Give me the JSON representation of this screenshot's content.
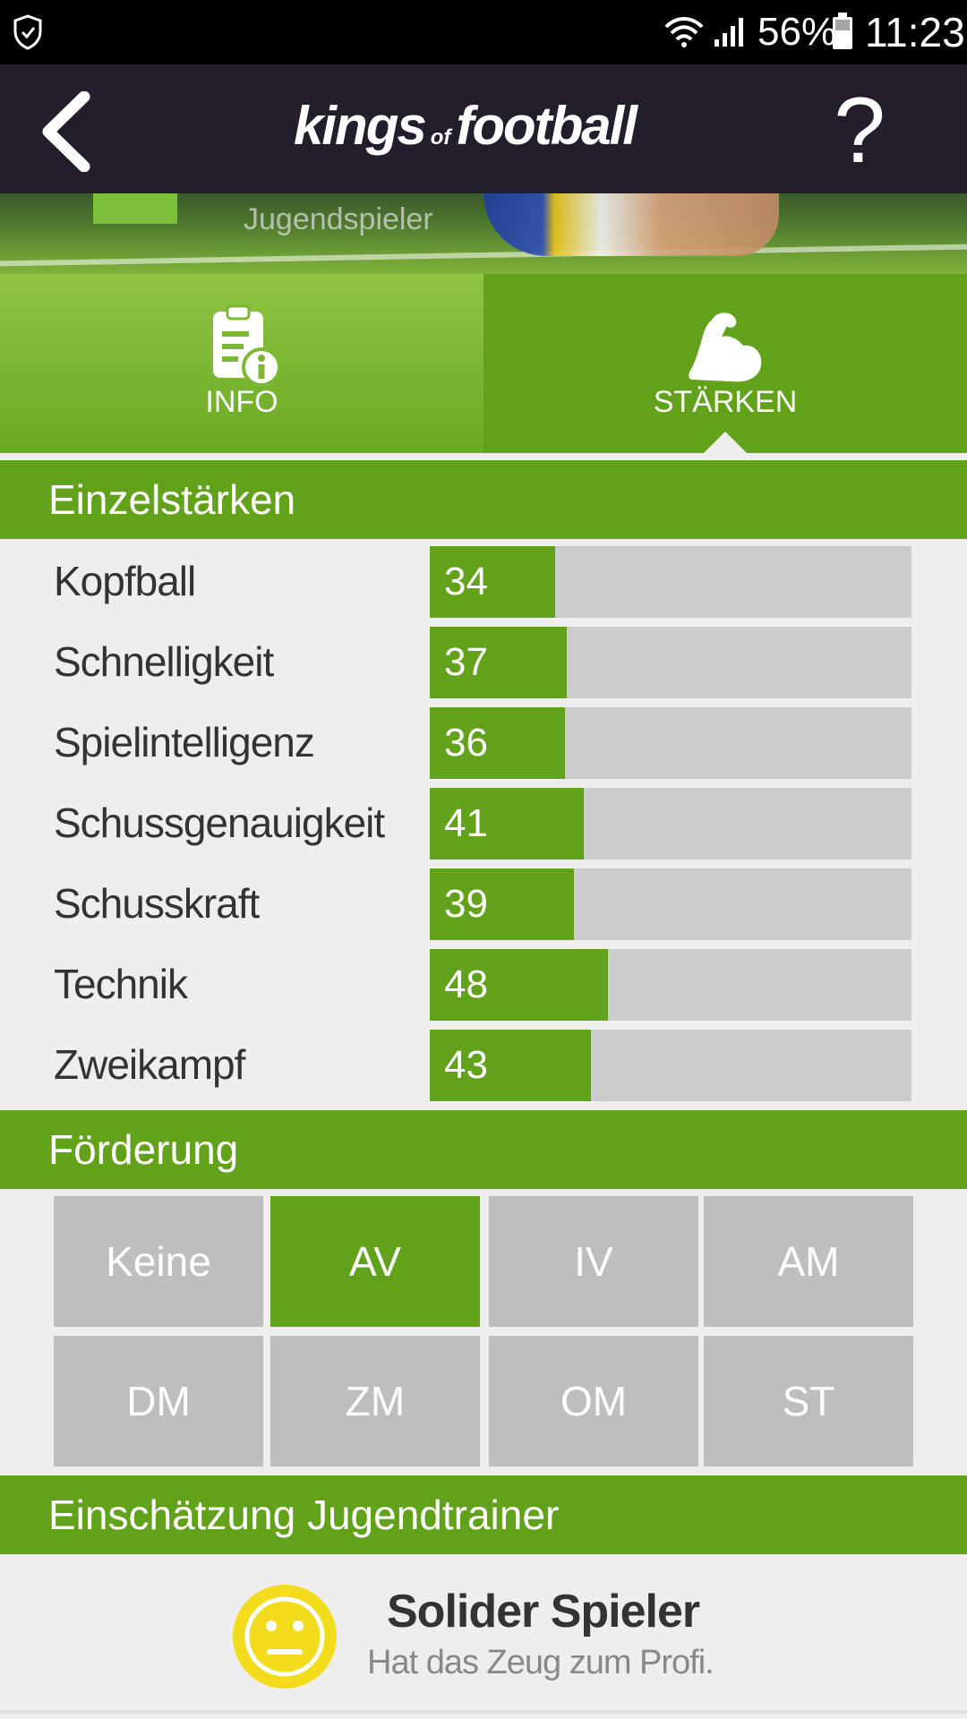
{
  "status_bar": {
    "battery": "56%",
    "time": "11:23"
  },
  "app_bar": {
    "logo_main_1": "kings",
    "logo_small": "of",
    "logo_main_2": "football",
    "help_label": "?"
  },
  "banner": {
    "subtitle": "Jugendspieler"
  },
  "tabs": [
    {
      "label": "INFO",
      "icon": "clipboard-info-icon",
      "active": false
    },
    {
      "label": "STÄRKEN",
      "icon": "flexed-biceps-icon",
      "active": true
    }
  ],
  "sections": {
    "stats_title": "Einzelstärken",
    "promotion_title": "Förderung",
    "assessment_title": "Einschätzung Jugendtrainer"
  },
  "stats": [
    {
      "name": "Kopfball",
      "value": "34",
      "fill_pct": 26
    },
    {
      "name": "Schnelligkeit",
      "value": "37",
      "fill_pct": 28.5
    },
    {
      "name": "Spielintelligenz",
      "value": "36",
      "fill_pct": 28
    },
    {
      "name": "Schussgenauigkeit",
      "value": "41",
      "fill_pct": 32
    },
    {
      "name": "Schusskraft",
      "value": "39",
      "fill_pct": 30
    },
    {
      "name": "Technik",
      "value": "48",
      "fill_pct": 37
    },
    {
      "name": "Zweikampf",
      "value": "43",
      "fill_pct": 33.5
    }
  ],
  "promotion": {
    "options": [
      "Keine",
      "AV",
      "IV",
      "AM",
      "DM",
      "ZM",
      "OM",
      "ST"
    ],
    "selected": "AV"
  },
  "assessment": {
    "title": "Solider Spieler",
    "subtitle": "Hat das Zeug zum Profi.",
    "icon": "neutral-face-icon"
  },
  "colors": {
    "accent": "#62a21b",
    "appbar": "#231d2c",
    "track": "#cccccc",
    "inactive_cell": "#bebebe",
    "smiley": "#f2dc1c"
  }
}
